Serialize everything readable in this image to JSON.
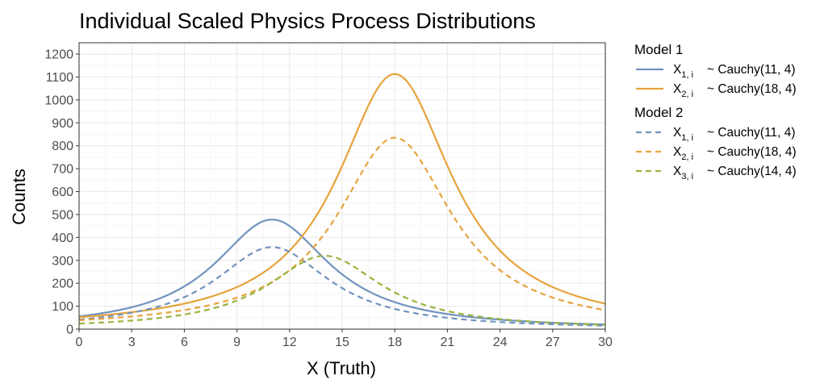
{
  "chart_data": {
    "type": "line",
    "title": "Individual Scaled Physics Process Distributions",
    "xlabel": "X (Truth)",
    "ylabel": "Counts",
    "xlim": [
      0,
      30
    ],
    "ylim": [
      0,
      1200
    ],
    "x_ticks": [
      0,
      3,
      6,
      9,
      12,
      15,
      18,
      21,
      24,
      27,
      30
    ],
    "y_ticks": [
      0,
      100,
      200,
      300,
      400,
      500,
      600,
      700,
      800,
      900,
      1000,
      1100,
      1200
    ],
    "grid": true,
    "legend_position": "right",
    "legend_groups": [
      {
        "title": "Model 1",
        "entries": [
          {
            "var": "X",
            "sub": "1, i",
            "dist": "~  Cauchy(11, 4)",
            "color": "#7293bf",
            "dash": "solid"
          },
          {
            "var": "X",
            "sub": "2, i",
            "dist": "~  Cauchy(18, 4)",
            "color": "#e6a33c",
            "dash": "solid"
          }
        ]
      },
      {
        "title": "Model 2",
        "entries": [
          {
            "var": "X",
            "sub": "1, i",
            "dist": "~  Cauchy(11, 4)",
            "color": "#7293bf",
            "dash": "dashed"
          },
          {
            "var": "X",
            "sub": "2, i",
            "dist": "~  Cauchy(18, 4)",
            "color": "#e6a33c",
            "dash": "dashed"
          },
          {
            "var": "X",
            "sub": "3, i",
            "dist": "~  Cauchy(14, 4)",
            "color": "#99b33f",
            "dash": "dashed"
          }
        ]
      }
    ],
    "series": [
      {
        "group": "Model 1",
        "location": 11,
        "scale": 4,
        "peak": 478,
        "color": "#7293bf",
        "dash": "solid",
        "x": [
          0,
          3,
          6,
          9,
          11,
          12,
          15,
          18,
          21,
          24,
          27,
          30
        ],
        "values": [
          56,
          96,
          187,
          382,
          478,
          450,
          240,
          117,
          65,
          41,
          29,
          21
        ]
      },
      {
        "group": "Model 1",
        "location": 18,
        "scale": 4,
        "peak": 1113,
        "color": "#e6a33c",
        "dash": "solid",
        "x": [
          0,
          3,
          6,
          9,
          12,
          15,
          18,
          21,
          24,
          27,
          30
        ],
        "values": [
          53,
          74,
          112,
          184,
          342,
          712,
          1113,
          712,
          342,
          184,
          112
        ]
      },
      {
        "group": "Model 2",
        "location": 11,
        "scale": 4,
        "peak": 358,
        "color": "#7293bf",
        "dash": "dashed",
        "x": [
          0,
          3,
          6,
          9,
          11,
          12,
          15,
          18,
          21,
          24,
          27,
          30
        ],
        "values": [
          42,
          72,
          140,
          286,
          358,
          337,
          179,
          88,
          49,
          31,
          22,
          16
        ]
      },
      {
        "group": "Model 2",
        "location": 18,
        "scale": 4,
        "peak": 835,
        "color": "#e6a33c",
        "dash": "dashed",
        "x": [
          0,
          3,
          6,
          9,
          12,
          15,
          18,
          21,
          24,
          27,
          30
        ],
        "values": [
          40,
          55,
          84,
          138,
          256,
          534,
          835,
          534,
          256,
          138,
          84
        ]
      },
      {
        "group": "Model 2",
        "location": 14,
        "scale": 4,
        "peak": 320,
        "color": "#99b33f",
        "dash": "dashed",
        "x": [
          0,
          3,
          6,
          9,
          12,
          14,
          15,
          18,
          21,
          24,
          27,
          30
        ],
        "values": [
          24,
          37,
          64,
          125,
          256,
          320,
          301,
          160,
          79,
          44,
          28,
          19
        ]
      }
    ]
  }
}
